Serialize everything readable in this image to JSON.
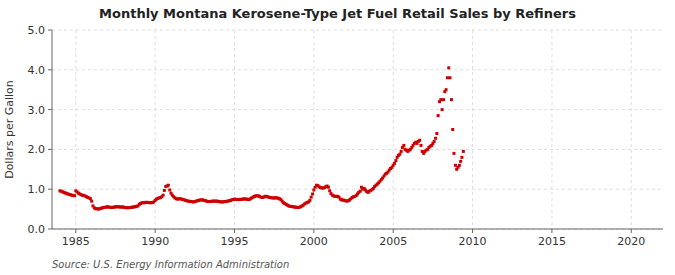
{
  "chart_data": {
    "type": "scatter",
    "title": "Monthly Montana Kerosene-Type Jet Fuel Retail Sales by Refiners",
    "y_label": "Dollars per Gallon",
    "annotations": [
      "Source: U.S. Energy Information Administration"
    ],
    "color": "#cc0000",
    "marker": "square",
    "grid": true,
    "xlim": [
      1983.5,
      2022
    ],
    "ylim": [
      0.0,
      5.0
    ],
    "xticks": [
      1985,
      1990,
      1995,
      2000,
      2005,
      2010,
      2015,
      2020
    ],
    "yticks": [
      {
        "value": 0.0,
        "label": "0.0"
      },
      {
        "value": 1.0,
        "label": "1.0"
      },
      {
        "value": 2.0,
        "label": "2.0"
      },
      {
        "value": 3.0,
        "label": "3.0"
      },
      {
        "value": 4.0,
        "label": "4.0"
      },
      {
        "value": 5.0,
        "label": "5.0"
      }
    ],
    "x": [
      1984.0,
      1984.08,
      1984.17,
      1984.25,
      1984.33,
      1984.42,
      1984.5,
      1984.58,
      1984.67,
      1984.75,
      1984.83,
      1984.92,
      1985.0,
      1985.08,
      1985.17,
      1985.25,
      1985.33,
      1985.42,
      1985.5,
      1985.58,
      1985.67,
      1985.75,
      1985.83,
      1985.92,
      1986.0,
      1986.08,
      1986.17,
      1986.25,
      1986.33,
      1986.42,
      1986.5,
      1986.58,
      1986.67,
      1986.75,
      1986.83,
      1986.92,
      1987.0,
      1987.08,
      1987.17,
      1987.25,
      1987.33,
      1987.42,
      1987.5,
      1987.58,
      1987.67,
      1987.75,
      1987.83,
      1987.92,
      1988.0,
      1988.08,
      1988.17,
      1988.25,
      1988.33,
      1988.42,
      1988.5,
      1988.58,
      1988.67,
      1988.75,
      1988.83,
      1988.92,
      1989.0,
      1989.08,
      1989.17,
      1989.25,
      1989.33,
      1989.42,
      1989.5,
      1989.58,
      1989.67,
      1989.75,
      1989.83,
      1989.92,
      1990.0,
      1990.08,
      1990.17,
      1990.25,
      1990.33,
      1990.42,
      1990.5,
      1990.58,
      1990.67,
      1990.75,
      1990.83,
      1990.92,
      1991.0,
      1991.08,
      1991.17,
      1991.25,
      1991.33,
      1991.42,
      1991.5,
      1991.58,
      1991.67,
      1991.75,
      1991.83,
      1991.92,
      1992.0,
      1992.08,
      1992.17,
      1992.25,
      1992.33,
      1992.42,
      1992.5,
      1992.58,
      1992.67,
      1992.75,
      1992.83,
      1992.92,
      1993.0,
      1993.08,
      1993.17,
      1993.25,
      1993.33,
      1993.42,
      1993.5,
      1993.58,
      1993.67,
      1993.75,
      1993.83,
      1993.92,
      1994.0,
      1994.08,
      1994.17,
      1994.25,
      1994.33,
      1994.42,
      1994.5,
      1994.58,
      1994.67,
      1994.75,
      1994.83,
      1994.92,
      1995.0,
      1995.08,
      1995.17,
      1995.25,
      1995.33,
      1995.42,
      1995.5,
      1995.58,
      1995.67,
      1995.75,
      1995.83,
      1995.92,
      1996.0,
      1996.08,
      1996.17,
      1996.25,
      1996.33,
      1996.42,
      1996.5,
      1996.58,
      1996.67,
      1996.75,
      1996.83,
      1996.92,
      1997.0,
      1997.08,
      1997.17,
      1997.25,
      1997.33,
      1997.42,
      1997.5,
      1997.58,
      1997.67,
      1997.75,
      1997.83,
      1997.92,
      1998.0,
      1998.08,
      1998.17,
      1998.25,
      1998.33,
      1998.42,
      1998.5,
      1998.58,
      1998.67,
      1998.75,
      1998.83,
      1998.92,
      1999.0,
      1999.08,
      1999.17,
      1999.25,
      1999.33,
      1999.42,
      1999.5,
      1999.58,
      1999.67,
      1999.75,
      1999.83,
      1999.92,
      2000.0,
      2000.08,
      2000.17,
      2000.25,
      2000.33,
      2000.42,
      2000.5,
      2000.58,
      2000.67,
      2000.75,
      2000.83,
      2000.92,
      2001.0,
      2001.08,
      2001.17,
      2001.25,
      2001.33,
      2001.42,
      2001.5,
      2001.58,
      2001.67,
      2001.75,
      2001.83,
      2001.92,
      2002.0,
      2002.08,
      2002.17,
      2002.25,
      2002.33,
      2002.42,
      2002.5,
      2002.58,
      2002.67,
      2002.75,
      2002.83,
      2002.92,
      2003.0,
      2003.08,
      2003.17,
      2003.25,
      2003.33,
      2003.42,
      2003.5,
      2003.58,
      2003.67,
      2003.75,
      2003.83,
      2003.92,
      2004.0,
      2004.08,
      2004.17,
      2004.25,
      2004.33,
      2004.42,
      2004.5,
      2004.58,
      2004.67,
      2004.75,
      2004.83,
      2004.92,
      2005.0,
      2005.08,
      2005.17,
      2005.25,
      2005.33,
      2005.42,
      2005.5,
      2005.58,
      2005.67,
      2005.75,
      2005.83,
      2005.92,
      2006.0,
      2006.08,
      2006.17,
      2006.25,
      2006.33,
      2006.42,
      2006.5,
      2006.58,
      2006.67,
      2006.75,
      2006.83,
      2006.92,
      2007.0,
      2007.08,
      2007.17,
      2007.25,
      2007.33,
      2007.42,
      2007.5,
      2007.58,
      2007.67,
      2007.75,
      2007.83,
      2007.92,
      2008.0,
      2008.08,
      2008.17,
      2008.25,
      2008.33,
      2008.42,
      2008.5,
      2008.58,
      2008.67,
      2008.75,
      2008.83,
      2008.92,
      2009.0,
      2009.08,
      2009.17,
      2009.25,
      2009.33,
      2009.42
    ],
    "values": [
      0.956,
      0.952,
      0.934,
      0.92,
      0.905,
      0.895,
      0.88,
      0.87,
      0.86,
      0.85,
      0.84,
      0.835,
      0.96,
      0.93,
      0.9,
      0.88,
      0.86,
      0.85,
      0.84,
      0.83,
      0.81,
      0.795,
      0.78,
      0.76,
      0.7,
      0.58,
      0.53,
      0.51,
      0.51,
      0.5,
      0.51,
      0.52,
      0.53,
      0.54,
      0.545,
      0.55,
      0.56,
      0.55,
      0.545,
      0.54,
      0.545,
      0.55,
      0.555,
      0.56,
      0.56,
      0.555,
      0.55,
      0.555,
      0.55,
      0.54,
      0.535,
      0.535,
      0.535,
      0.54,
      0.545,
      0.55,
      0.555,
      0.56,
      0.57,
      0.58,
      0.62,
      0.64,
      0.66,
      0.66,
      0.66,
      0.67,
      0.67,
      0.665,
      0.66,
      0.66,
      0.665,
      0.68,
      0.72,
      0.75,
      0.77,
      0.78,
      0.79,
      0.81,
      0.85,
      0.97,
      1.07,
      1.08,
      1.1,
      0.98,
      0.9,
      0.85,
      0.81,
      0.78,
      0.76,
      0.75,
      0.76,
      0.76,
      0.75,
      0.74,
      0.73,
      0.72,
      0.71,
      0.7,
      0.695,
      0.69,
      0.685,
      0.68,
      0.69,
      0.7,
      0.71,
      0.72,
      0.73,
      0.73,
      0.73,
      0.72,
      0.71,
      0.7,
      0.69,
      0.69,
      0.69,
      0.7,
      0.7,
      0.7,
      0.7,
      0.7,
      0.69,
      0.685,
      0.68,
      0.68,
      0.685,
      0.69,
      0.695,
      0.7,
      0.71,
      0.72,
      0.73,
      0.74,
      0.75,
      0.745,
      0.74,
      0.74,
      0.74,
      0.745,
      0.75,
      0.755,
      0.755,
      0.75,
      0.745,
      0.74,
      0.76,
      0.78,
      0.8,
      0.82,
      0.83,
      0.835,
      0.83,
      0.82,
      0.8,
      0.79,
      0.8,
      0.82,
      0.82,
      0.81,
      0.8,
      0.79,
      0.785,
      0.78,
      0.78,
      0.785,
      0.78,
      0.775,
      0.76,
      0.74,
      0.7,
      0.66,
      0.64,
      0.62,
      0.6,
      0.58,
      0.57,
      0.565,
      0.56,
      0.555,
      0.55,
      0.545,
      0.54,
      0.545,
      0.56,
      0.58,
      0.6,
      0.63,
      0.65,
      0.67,
      0.68,
      0.72,
      0.8,
      0.88,
      0.98,
      1.05,
      1.1,
      1.09,
      1.06,
      1.04,
      1.03,
      1.03,
      1.04,
      1.06,
      1.08,
      1.05,
      0.96,
      0.89,
      0.85,
      0.83,
      0.82,
      0.82,
      0.82,
      0.8,
      0.75,
      0.73,
      0.73,
      0.72,
      0.71,
      0.7,
      0.71,
      0.73,
      0.76,
      0.79,
      0.81,
      0.82,
      0.84,
      0.88,
      0.92,
      0.95,
      1.05,
      1.0,
      1.02,
      0.98,
      0.94,
      0.92,
      0.95,
      0.97,
      0.99,
      1.02,
      1.07,
      1.1,
      1.13,
      1.16,
      1.2,
      1.24,
      1.28,
      1.33,
      1.38,
      1.4,
      1.43,
      1.48,
      1.52,
      1.55,
      1.6,
      1.65,
      1.72,
      1.8,
      1.85,
      1.88,
      1.95,
      2.05,
      2.1,
      2.0,
      1.98,
      1.95,
      1.98,
      2.0,
      2.05,
      2.1,
      2.15,
      2.18,
      2.15,
      2.2,
      2.23,
      2.1,
      1.95,
      1.9,
      1.95,
      1.98,
      2.0,
      2.05,
      2.08,
      2.1,
      2.15,
      2.2,
      2.28,
      2.4,
      2.85,
      3.2,
      3.25,
      3.0,
      3.25,
      3.45,
      3.5,
      3.8,
      4.05,
      3.8,
      3.25,
      2.5,
      1.9,
      1.6,
      1.5,
      1.55,
      1.6,
      1.7,
      1.8,
      1.95
    ]
  }
}
